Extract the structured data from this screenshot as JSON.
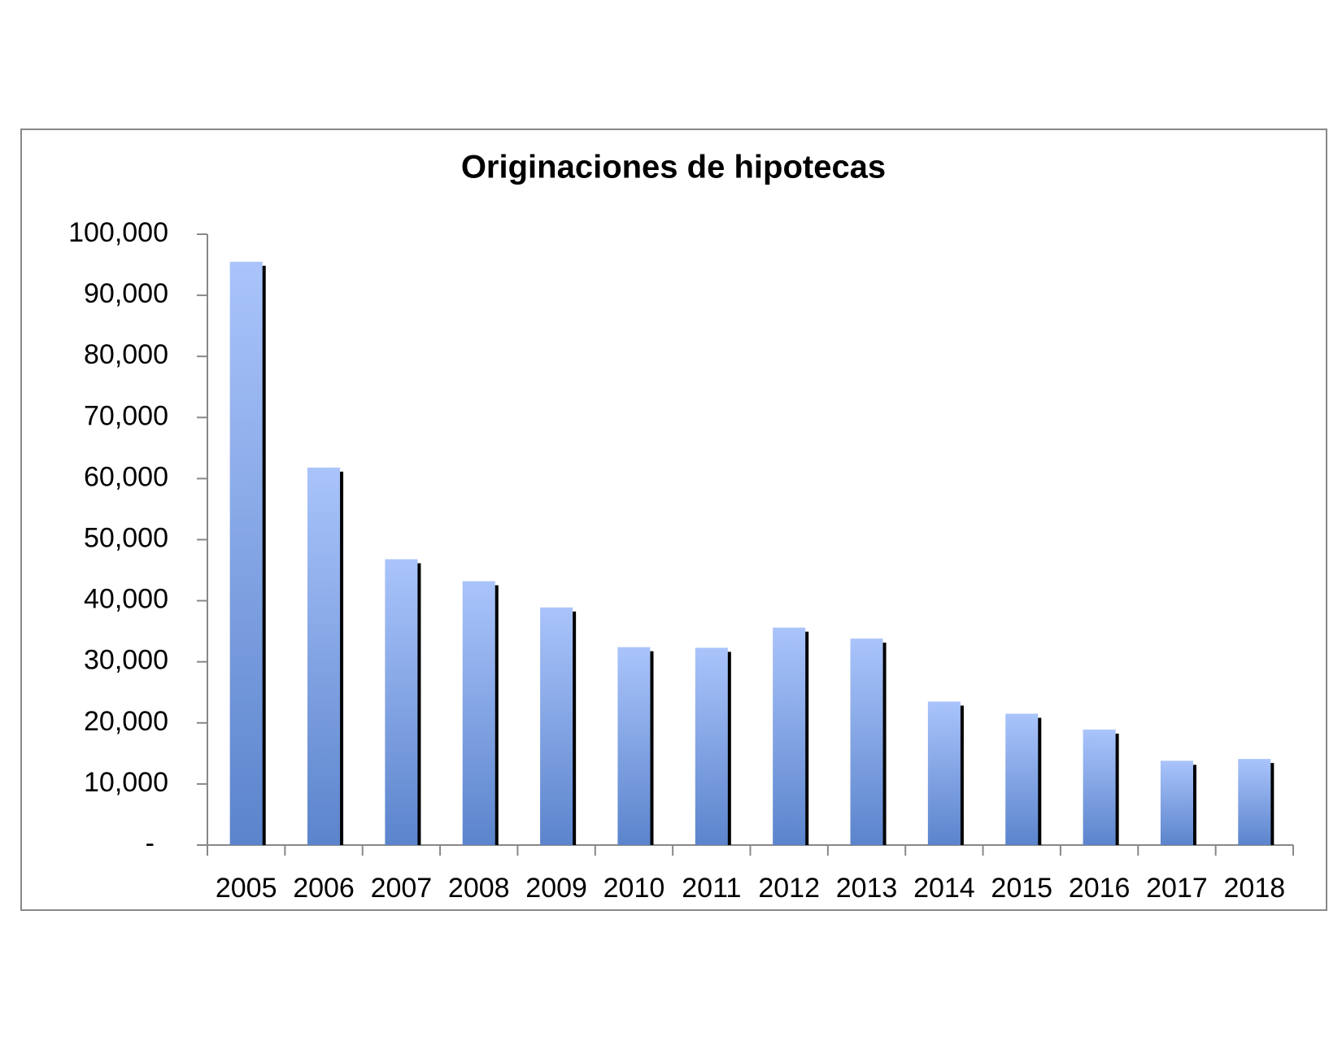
{
  "chart_data": {
    "type": "bar",
    "title": "Originaciones de hipotecas",
    "categories": [
      "2005",
      "2006",
      "2007",
      "2008",
      "2009",
      "2010",
      "2011",
      "2012",
      "2013",
      "2014",
      "2015",
      "2016",
      "2017",
      "2018"
    ],
    "values": [
      95500,
      61800,
      46800,
      43200,
      38900,
      32400,
      32300,
      35600,
      33800,
      23500,
      21500,
      18900,
      13800,
      14100
    ],
    "color": "#7b9fe0",
    "ylim": [
      0,
      100000
    ],
    "yticks": [
      {
        "value": 0,
        "label": "-"
      },
      {
        "value": 10000,
        "label": "10,000"
      },
      {
        "value": 20000,
        "label": "20,000"
      },
      {
        "value": 30000,
        "label": "30,000"
      },
      {
        "value": 40000,
        "label": "40,000"
      },
      {
        "value": 50000,
        "label": "50,000"
      },
      {
        "value": 60000,
        "label": "60,000"
      },
      {
        "value": 70000,
        "label": "70,000"
      },
      {
        "value": 80000,
        "label": "80,000"
      },
      {
        "value": 90000,
        "label": "90,000"
      },
      {
        "value": 100000,
        "label": "100,000"
      }
    ],
    "grid": false
  }
}
